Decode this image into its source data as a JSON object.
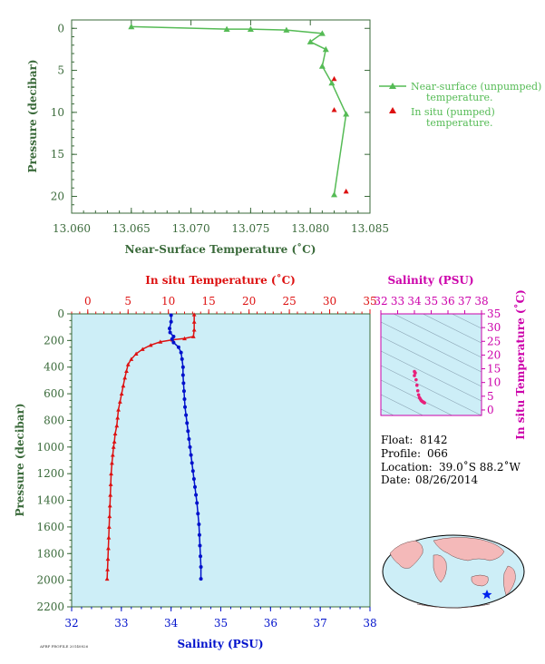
{
  "colors": {
    "near_surface": "#55bb55",
    "in_situ": "#dd1111",
    "salinity": "#0011cc",
    "ts_magenta": "#cc00aa",
    "ts_points": "#e8207a",
    "panel_bg": "#cdeef7",
    "axis_green": "#3a6a3a"
  },
  "chart_data": [
    {
      "type": "line",
      "ylabel": "Pressure (decibar)",
      "xlabel": "Near-Surface Temperature (˚C)",
      "xlim": [
        13.06,
        13.085
      ],
      "ylim": [
        22,
        -1
      ],
      "x_ticks": [
        "13.060",
        "13.065",
        "13.070",
        "13.075",
        "13.080",
        "13.085"
      ],
      "y_ticks": [
        "0",
        "5",
        "10",
        "15",
        "20"
      ],
      "series": [
        {
          "name": "Near-surface (unpumped) temperature.",
          "points": [
            [
              13.065,
              -0.2
            ],
            [
              13.073,
              0.1
            ],
            [
              13.075,
              0.1
            ],
            [
              13.078,
              0.2
            ],
            [
              13.081,
              0.6
            ],
            [
              13.08,
              1.6
            ],
            [
              13.0813,
              2.5
            ],
            [
              13.081,
              4.5
            ],
            [
              13.0818,
              6.5
            ],
            [
              13.083,
              10.2
            ],
            [
              13.082,
              19.8
            ]
          ]
        },
        {
          "name": "In situ (pumped) temperature.",
          "points": [
            [
              13.082,
              6.0
            ],
            [
              13.082,
              9.7
            ],
            [
              13.083,
              19.4
            ]
          ]
        }
      ],
      "legend": [
        {
          "text_a": "Near-surface (unpumped)",
          "text_b": "temperature."
        },
        {
          "text_a": "In situ (pumped)",
          "text_b": "temperature."
        }
      ]
    },
    {
      "type": "line",
      "ylabel": "Pressure (decibar)",
      "top_xlabel": "In situ Temperature (˚C)",
      "bottom_xlabel": "Salinity (PSU)",
      "temp_lim": [
        -2,
        35
      ],
      "sal_lim": [
        32,
        38
      ],
      "ylim": [
        2200,
        0
      ],
      "temp_ticks": [
        "0",
        "5",
        "10",
        "15",
        "20",
        "25",
        "30",
        "35"
      ],
      "sal_ticks": [
        "32",
        "33",
        "34",
        "35",
        "36",
        "37",
        "38"
      ],
      "p_ticks": [
        "0",
        "200",
        "400",
        "600",
        "800",
        "1000",
        "1200",
        "1400",
        "1600",
        "1800",
        "2000",
        "2200"
      ],
      "temperature": [
        [
          13.2,
          5
        ],
        [
          13.2,
          60
        ],
        [
          13.2,
          120
        ],
        [
          13.1,
          170
        ],
        [
          12.0,
          185
        ],
        [
          10.5,
          195
        ],
        [
          9.0,
          210
        ],
        [
          7.8,
          235
        ],
        [
          6.8,
          265
        ],
        [
          6.0,
          300
        ],
        [
          5.4,
          340
        ],
        [
          5.0,
          380
        ],
        [
          4.8,
          430
        ],
        [
          4.6,
          480
        ],
        [
          4.4,
          540
        ],
        [
          4.2,
          600
        ],
        [
          4.0,
          660
        ],
        [
          3.8,
          720
        ],
        [
          3.7,
          780
        ],
        [
          3.6,
          840
        ],
        [
          3.4,
          900
        ],
        [
          3.3,
          960
        ],
        [
          3.2,
          1000
        ],
        [
          3.1,
          1060
        ],
        [
          3.0,
          1120
        ],
        [
          2.9,
          1200
        ],
        [
          2.85,
          1280
        ],
        [
          2.8,
          1360
        ],
        [
          2.75,
          1440
        ],
        [
          2.7,
          1520
        ],
        [
          2.65,
          1600
        ],
        [
          2.6,
          1680
        ],
        [
          2.55,
          1760
        ],
        [
          2.5,
          1840
        ],
        [
          2.45,
          1920
        ],
        [
          2.4,
          1990
        ]
      ],
      "salinity": [
        [
          34.0,
          10
        ],
        [
          34.0,
          60
        ],
        [
          33.97,
          110
        ],
        [
          33.98,
          140
        ],
        [
          34.05,
          170
        ],
        [
          34.02,
          190
        ],
        [
          34.05,
          215
        ],
        [
          34.15,
          250
        ],
        [
          34.2,
          290
        ],
        [
          34.22,
          340
        ],
        [
          34.24,
          400
        ],
        [
          34.24,
          460
        ],
        [
          34.25,
          520
        ],
        [
          34.26,
          580
        ],
        [
          34.27,
          640
        ],
        [
          34.28,
          700
        ],
        [
          34.3,
          760
        ],
        [
          34.32,
          820
        ],
        [
          34.34,
          880
        ],
        [
          34.36,
          940
        ],
        [
          34.38,
          1000
        ],
        [
          34.4,
          1060
        ],
        [
          34.42,
          1120
        ],
        [
          34.44,
          1180
        ],
        [
          34.46,
          1240
        ],
        [
          34.48,
          1300
        ],
        [
          34.5,
          1360
        ],
        [
          34.52,
          1420
        ],
        [
          34.54,
          1500
        ],
        [
          34.56,
          1580
        ],
        [
          34.57,
          1660
        ],
        [
          34.58,
          1740
        ],
        [
          34.59,
          1820
        ],
        [
          34.6,
          1900
        ],
        [
          34.6,
          1990
        ]
      ]
    },
    {
      "type": "scatter",
      "xlabel": "Salinity (PSU)",
      "ylabel": "In situ Temperature (˚C)",
      "xlim": [
        32,
        38
      ],
      "ylim": [
        -2,
        35
      ],
      "x_ticks": [
        "32",
        "33",
        "34",
        "35",
        "36",
        "37",
        "38"
      ],
      "y_ticks": [
        "0",
        "5",
        "10",
        "15",
        "20",
        "25",
        "30",
        "35"
      ],
      "points": [
        [
          34.05,
          13.5
        ],
        [
          34.0,
          12.5
        ],
        [
          34.1,
          11.0
        ],
        [
          34.15,
          9.0
        ],
        [
          34.2,
          7.0
        ],
        [
          34.25,
          5.5
        ],
        [
          34.3,
          4.5
        ],
        [
          34.35,
          4.0
        ],
        [
          34.4,
          3.5
        ],
        [
          34.45,
          3.2
        ],
        [
          34.5,
          3.0
        ],
        [
          34.55,
          2.8
        ],
        [
          34.6,
          2.6
        ],
        [
          34.0,
          14.0
        ]
      ]
    }
  ],
  "info": {
    "float_label": "Float:",
    "float_value": "8142",
    "profile_label": "Profile:",
    "profile_value": "066",
    "location_label": "Location:",
    "location_value": "39.0˚S 88.2˚W",
    "date_label": "Date:",
    "date_value": "08/26/2014"
  },
  "footer_code": "AFBP PROFILE 20140826"
}
